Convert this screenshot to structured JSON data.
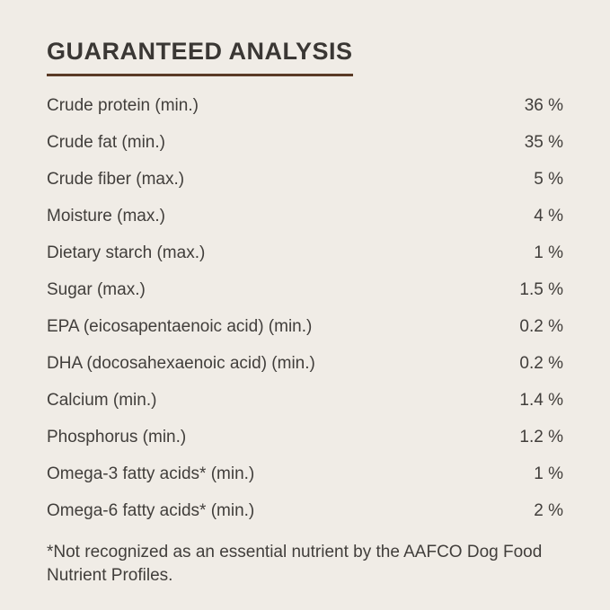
{
  "page": {
    "background_color": "#f0ece6",
    "text_color": "#413e3b",
    "accent_rule_color": "#5a3a26"
  },
  "analysis": {
    "title": "GUARANTEED ANALYSIS",
    "rows": [
      {
        "label": "Crude protein (min.)",
        "value": "36 %"
      },
      {
        "label": "Crude fat (min.)",
        "value": "35 %"
      },
      {
        "label": "Crude fiber (max.)",
        "value": "5 %"
      },
      {
        "label": "Moisture (max.)",
        "value": "4 %"
      },
      {
        "label": "Dietary starch (max.)",
        "value": "1 %"
      },
      {
        "label": "Sugar (max.)",
        "value": "1.5 %"
      },
      {
        "label": "EPA (eicosapentaenoic acid) (min.)",
        "value": "0.2 %"
      },
      {
        "label": "DHA (docosahexaenoic acid) (min.)",
        "value": "0.2 %"
      },
      {
        "label": "Calcium (min.)",
        "value": "1.4 %"
      },
      {
        "label": "Phosphorus (min.)",
        "value": "1.2 %"
      },
      {
        "label": "Omega-3 fatty acids* (min.)",
        "value": "1 %"
      },
      {
        "label": "Omega-6 fatty acids* (min.)",
        "value": "2 %"
      }
    ],
    "footnote": "*Not recognized as an essential nutrient by the AAFCO Dog Food Nutrient Profiles."
  }
}
